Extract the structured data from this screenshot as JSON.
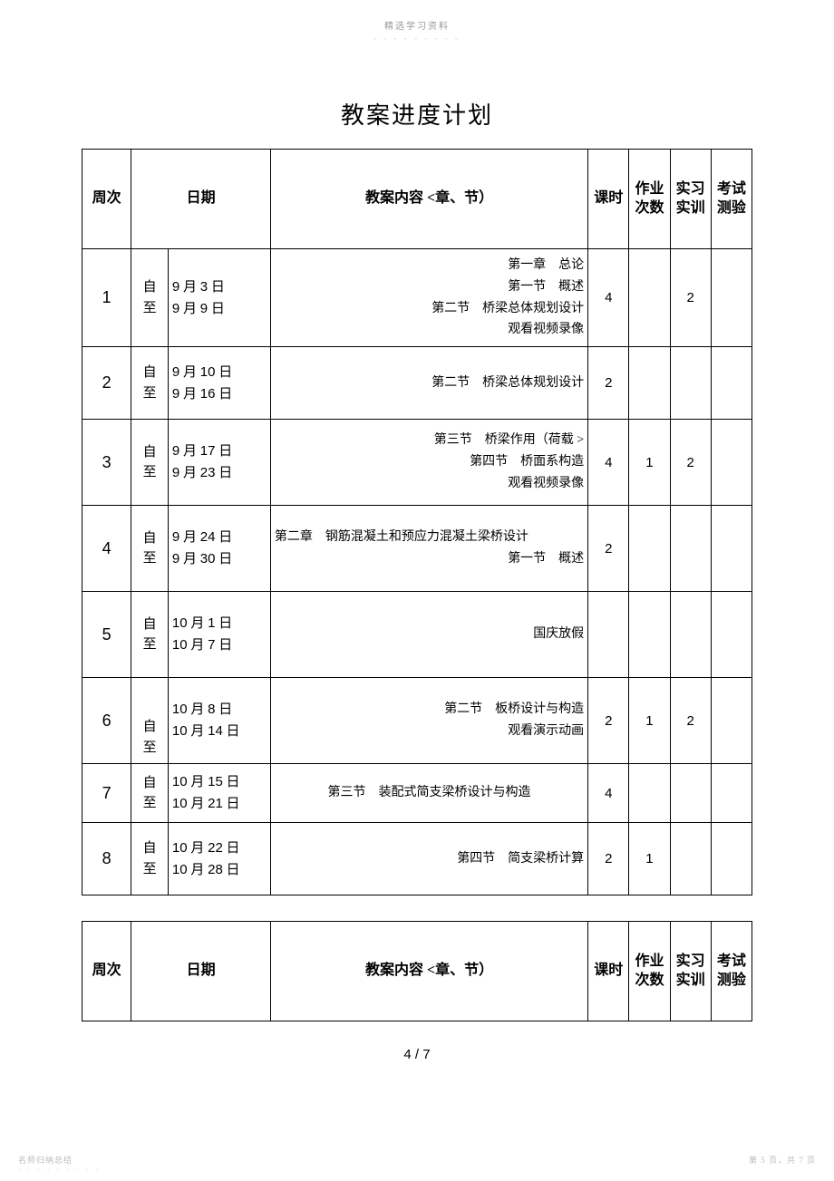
{
  "header_text": "精选学习资料",
  "header_dashes": "- - - - - - - - -",
  "title": "教案进度计划",
  "columns": {
    "week": "周次",
    "date": "日期",
    "content": "教案内容 <章、节）",
    "hours": "课时",
    "homework": "作业次数",
    "lab": "实习实训",
    "exam": "考试测验"
  },
  "from_to": "自\n至",
  "rows": [
    {
      "week": "1",
      "date_lines": [
        "9 月 3 日",
        "9 月 9 日"
      ],
      "content_lines": [
        "第一章　总论",
        "第一节　概述",
        "第二节　桥梁总体规划设计",
        "观看视频录像"
      ],
      "hours": "4",
      "homework": "",
      "lab": "2",
      "exam": "",
      "row_class": "row-tall",
      "fromto_valign": "middle"
    },
    {
      "week": "2",
      "date_lines": [
        "9 月 10 日",
        "9 月 16 日"
      ],
      "content_lines": [
        "第二节　桥梁总体规划设计"
      ],
      "hours": "2",
      "homework": "",
      "lab": "",
      "exam": "",
      "row_class": "row-med",
      "fromto_valign": "middle"
    },
    {
      "week": "3",
      "date_lines": [
        "9 月 17 日",
        "9 月 23 日"
      ],
      "content_lines": [
        "第三节　桥梁作用（荷载 >",
        "第四节　桥面系构造",
        "观看视频录像"
      ],
      "hours": "4",
      "homework": "1",
      "lab": "2",
      "exam": "",
      "row_class": "row-tall",
      "fromto_valign": "middle"
    },
    {
      "week": "4",
      "date_lines": [
        "9 月 24 日",
        "9 月 30 日"
      ],
      "content_lines": [
        "第二章　钢筋混凝土和预应力混凝土梁桥设计",
        "第一节　概述"
      ],
      "hours": "2",
      "homework": "",
      "lab": "",
      "exam": "",
      "row_class": "row-tall",
      "fromto_valign": "middle",
      "content_align_override": "left-first"
    },
    {
      "week": "5",
      "date_lines": [
        "10 月 1 日",
        "10 月 7 日"
      ],
      "content_lines": [
        "国庆放假"
      ],
      "hours": "",
      "homework": "",
      "lab": "",
      "exam": "",
      "row_class": "row-tall",
      "fromto_valign": "middle"
    },
    {
      "week": "6",
      "date_lines": [
        "10 月 8 日",
        "10 月 14 日"
      ],
      "content_lines": [
        "第二节　板桥设计与构造",
        "观看演示动画"
      ],
      "hours": "2",
      "homework": "1",
      "lab": "2",
      "exam": "",
      "row_class": "row-tall",
      "fromto_valign": "bottom"
    },
    {
      "week": "7",
      "date_lines": [
        "10 月 15 日",
        "10 月 21 日"
      ],
      "content_lines": [
        "第三节　装配式简支梁桥设计与构造"
      ],
      "hours": "4",
      "homework": "",
      "lab": "",
      "exam": "",
      "row_class": "row-short",
      "fromto_valign": "middle",
      "content_center": true
    },
    {
      "week": "8",
      "date_lines": [
        "10 月 22 日",
        "10 月 28 日"
      ],
      "content_lines": [
        "第四节　简支梁桥计算"
      ],
      "hours": "2",
      "homework": "1",
      "lab": "",
      "exam": "",
      "row_class": "row-med",
      "fromto_valign": "middle"
    }
  ],
  "page_number_text": "4 / 7",
  "footer_left": "名师归纳总结",
  "footer_right": "第 5 页，共 7 页",
  "footer_dashes": "- - - - - - - - -",
  "colors": {
    "text": "#000000",
    "header_text": "#999999",
    "border": "#000000",
    "background": "#ffffff",
    "footer_text": "#bbbbbb"
  },
  "fonts": {
    "body": "SimSun",
    "numbers": "Arial",
    "title_size_pt": 20,
    "header_size_pt": 12,
    "cell_size_pt": 11
  }
}
